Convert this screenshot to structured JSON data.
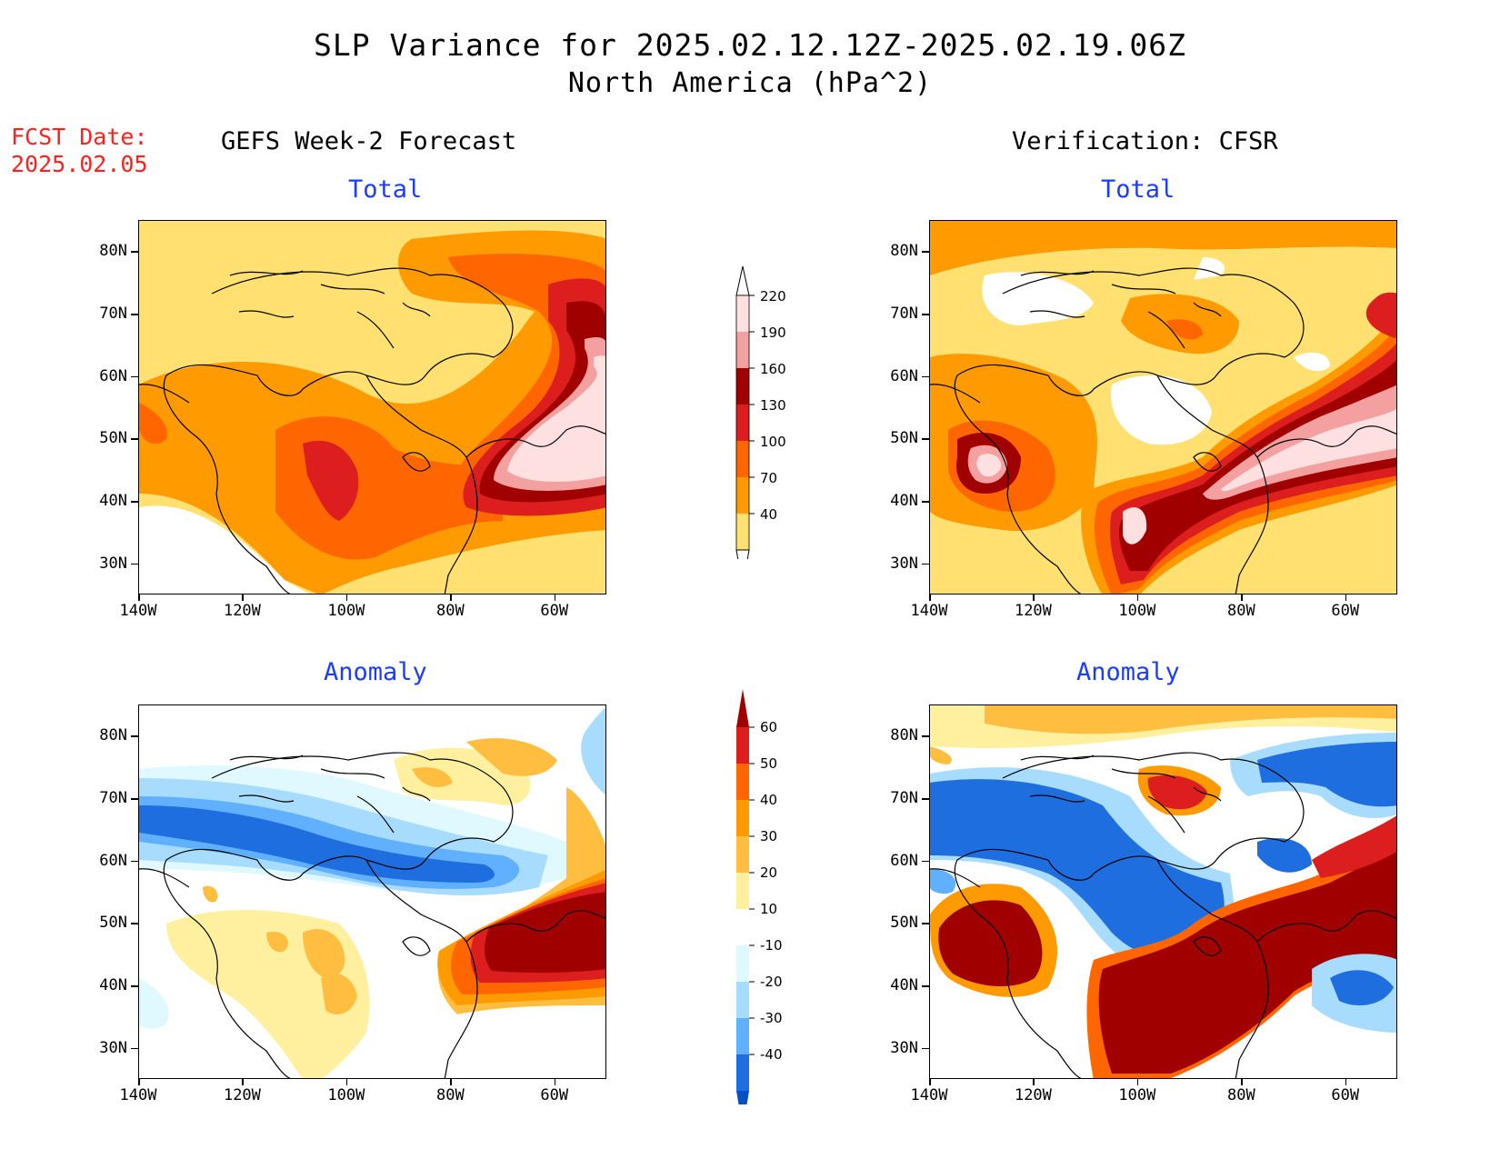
{
  "title": "SLP Variance for 2025.02.12.12Z-2025.02.19.06Z",
  "subtitle": "North America (hPa^2)",
  "fcst_date_label": "FCST Date:",
  "fcst_date_value": "2025.02.05",
  "columns": {
    "left": "GEFS Week-2 Forecast",
    "right": "Verification: CFSR"
  },
  "panels": [
    {
      "id": "fc-total",
      "title": "Total",
      "scale": "total"
    },
    {
      "id": "ver-total",
      "title": "Total",
      "scale": "total"
    },
    {
      "id": "fc-anom",
      "title": "Anomaly",
      "scale": "anom"
    },
    {
      "id": "ver-anom",
      "title": "Anomaly",
      "scale": "anom"
    }
  ],
  "axes": {
    "lat_ticks": [
      "80N",
      "70N",
      "60N",
      "50N",
      "40N",
      "30N"
    ],
    "lon_ticks": [
      "140W",
      "120W",
      "100W",
      "80W",
      "60W"
    ],
    "lat_range": [
      25,
      85
    ],
    "lon_range": [
      -140,
      -50
    ]
  },
  "colorbars": {
    "total": {
      "labels": [
        "220",
        "190",
        "160",
        "130",
        "100",
        "70",
        "40"
      ],
      "colors": [
        "#ffe0e0",
        "#f4a0a0",
        "#a00000",
        "#dc1e1e",
        "#ff6600",
        "#ff9a00",
        "#ffe070"
      ]
    },
    "anom": {
      "labels": [
        "60",
        "50",
        "40",
        "30",
        "20",
        "10",
        "-10",
        "-20",
        "-30",
        "-40"
      ],
      "colors": [
        "#a00000",
        "#dc1e1e",
        "#ff6600",
        "#ff9a00",
        "#ffbe40",
        "#fff0a0",
        "#ffffff",
        "#e0f8ff",
        "#a8dcff",
        "#60b0ff",
        "#1e6ee0",
        "#0050c8"
      ]
    }
  }
}
